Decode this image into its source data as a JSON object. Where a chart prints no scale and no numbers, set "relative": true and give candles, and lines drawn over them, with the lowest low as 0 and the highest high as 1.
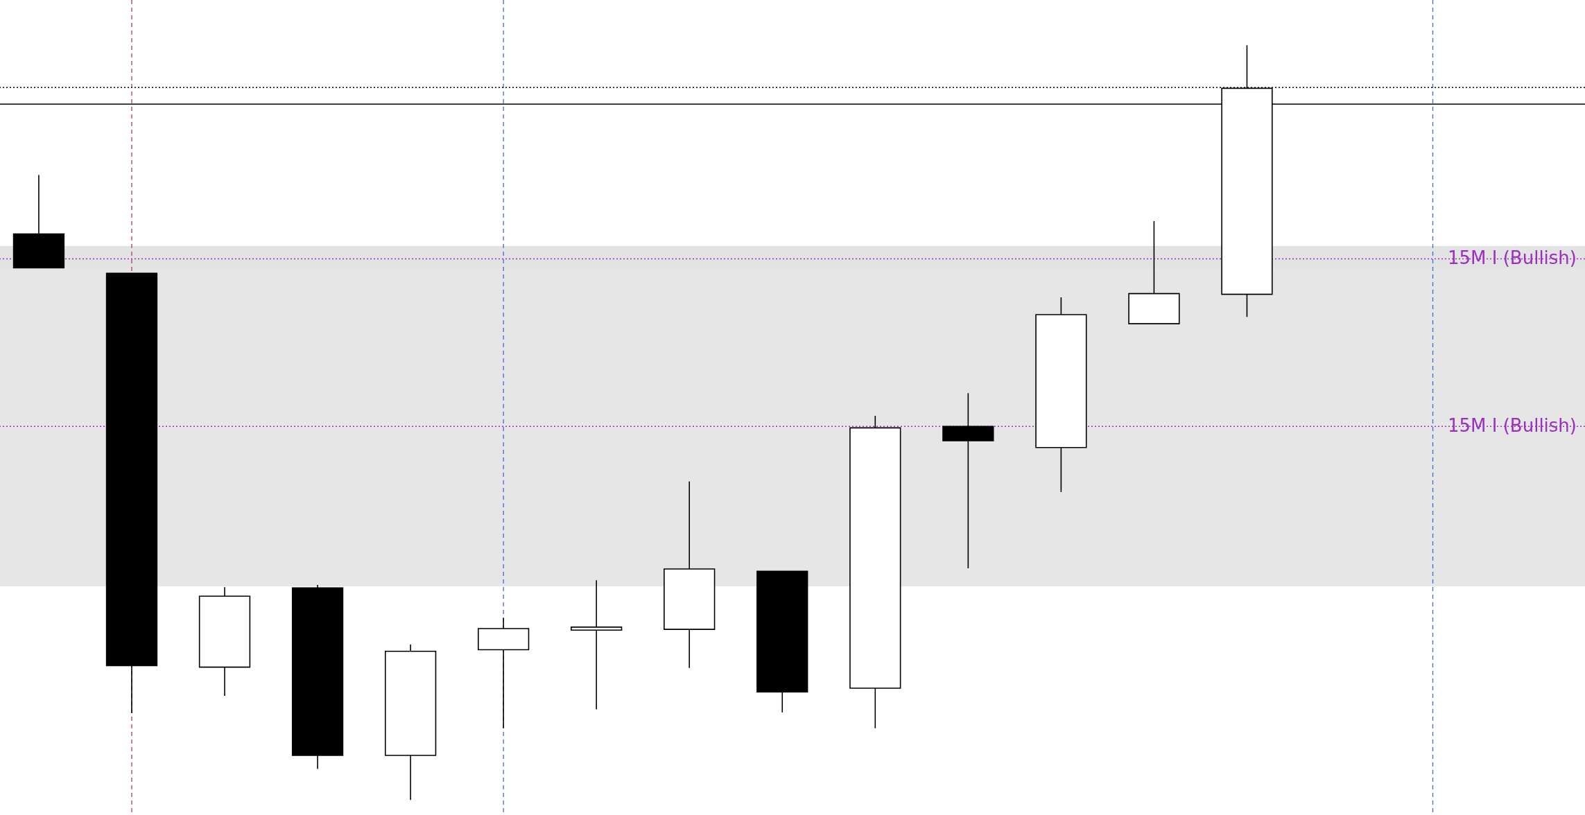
{
  "chart_data": {
    "type": "candlestick",
    "relative": true,
    "categories": [
      null,
      null,
      null,
      null,
      null,
      null,
      null,
      null,
      null,
      null,
      null,
      null,
      null,
      null
    ],
    "ohlc": [
      [
        0.75,
        0.828,
        0.705,
        0.705
      ],
      [
        0.698,
        0.698,
        0.115,
        0.178
      ],
      [
        0.176,
        0.282,
        0.138,
        0.27
      ],
      [
        0.281,
        0.285,
        0.041,
        0.059
      ],
      [
        0.059,
        0.206,
        0,
        0.197
      ],
      [
        0.199,
        0.241,
        0.095,
        0.227
      ],
      [
        0.225,
        0.291,
        0.12,
        0.229
      ],
      [
        0.226,
        0.422,
        0.175,
        0.306
      ],
      [
        0.303,
        0.303,
        0.116,
        0.143
      ],
      [
        0.148,
        0.509,
        0.095,
        0.493
      ],
      [
        0.495,
        0.539,
        0.307,
        0.476
      ],
      [
        0.467,
        0.666,
        0.408,
        0.643
      ],
      [
        0.631,
        0.767,
        0.631,
        0.671
      ],
      [
        0.67,
        1,
        0.64,
        0.943
      ]
    ],
    "bands": [
      {
        "axis": "y",
        "from": 0.699,
        "to": 0.734,
        "color": "#e3e3e3"
      },
      {
        "axis": "y",
        "from": 0.283,
        "to": 0.705,
        "color": "#e6e6e6"
      }
    ],
    "ref_lines": [
      {
        "axis": "y",
        "value": 0.944,
        "color": "#000000",
        "line_style": "dotted"
      },
      {
        "axis": "y",
        "value": 0.922,
        "color": "#000000",
        "line_style": "solid"
      },
      {
        "axis": "y",
        "value": 0.717,
        "label": "15M I (Bullish)",
        "color": "#9b30c0",
        "line_style": "dotted"
      },
      {
        "axis": "y",
        "value": 0.495,
        "label": "15M I (Bullish)",
        "color": "#9b30c0",
        "line_style": "dotted"
      }
    ]
  }
}
